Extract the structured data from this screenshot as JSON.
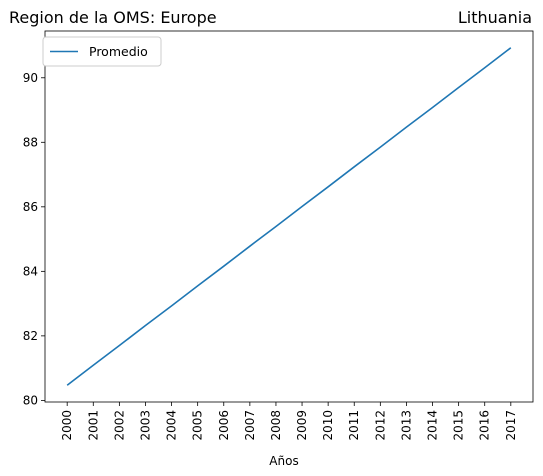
{
  "chart_data": {
    "type": "line",
    "title_left": "Region de la OMS: Europe",
    "title_right": "Lithuania",
    "xlabel": "Años",
    "ylabel": "",
    "x": [
      "2000",
      "2001",
      "2002",
      "2003",
      "2004",
      "2005",
      "2006",
      "2007",
      "2008",
      "2009",
      "2010",
      "2011",
      "2012",
      "2013",
      "2014",
      "2015",
      "2016",
      "2017"
    ],
    "series": [
      {
        "name": "Promedio",
        "color": "#1f77b4",
        "values": [
          80.47,
          81.09,
          81.7,
          82.32,
          82.93,
          83.55,
          84.16,
          84.78,
          85.39,
          86.01,
          86.62,
          87.24,
          87.85,
          88.47,
          89.08,
          89.7,
          90.31,
          90.93
        ]
      }
    ],
    "ylim": [
      79.95,
      91.45
    ],
    "yticks": [
      "80",
      "82",
      "84",
      "86",
      "88",
      "90"
    ],
    "ytick_values": [
      80,
      82,
      84,
      86,
      88,
      90
    ],
    "grid": false,
    "legend_position": "upper-left"
  }
}
